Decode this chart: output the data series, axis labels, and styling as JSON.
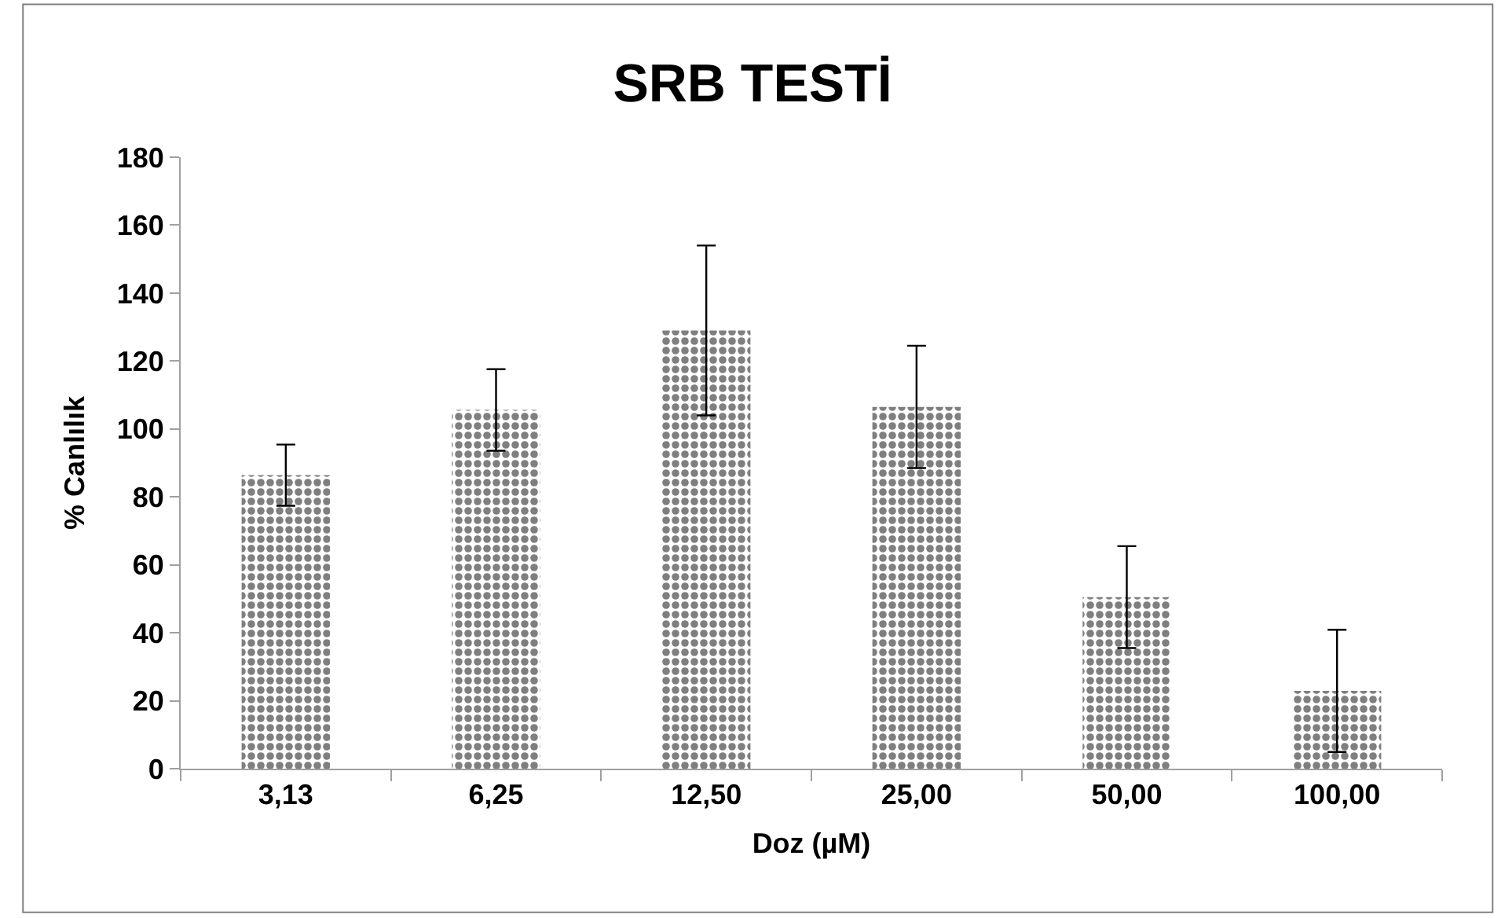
{
  "chart_data": {
    "type": "bar",
    "title": "SRB TESTİ",
    "xlabel": "Doz (µM)",
    "ylabel": "% Canlılık",
    "categories": [
      "3,13",
      "6,25",
      "12,50",
      "25,00",
      "50,00",
      "100,00"
    ],
    "values": [
      86.4,
      105.6,
      129,
      106.5,
      50.5,
      22.9
    ],
    "errors": [
      9,
      12,
      25,
      18,
      15,
      18
    ],
    "color": "#000000",
    "ylim": [
      0,
      180
    ],
    "yticks": [
      0,
      20,
      40,
      60,
      80,
      100,
      120,
      140,
      160,
      180
    ]
  }
}
